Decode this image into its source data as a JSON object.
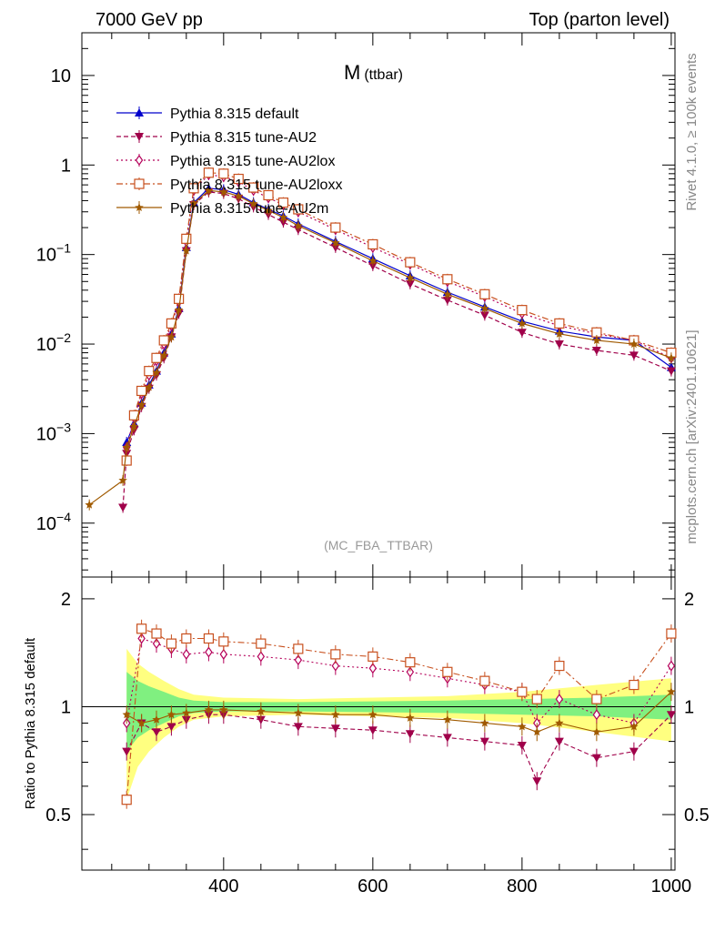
{
  "header": {
    "left": "7000 GeV pp",
    "right": "Top (parton level)"
  },
  "side_labels": {
    "rivet": "Rivet 4.1.0, ≥ 100k events",
    "mcplots": "mcplots.cern.ch [arXiv:2401.10621]"
  },
  "chart_data": {
    "type": "line",
    "title_main": "M",
    "title_sub": "(ttbar)",
    "analysis_id": "(MC_FBA_TTBAR)",
    "xlabel": "",
    "ylabel": "",
    "xlim": [
      210,
      1005
    ],
    "ylim": [
      2.5e-05,
      30
    ],
    "ylog": true,
    "x_ticks": [
      "400",
      "600",
      "800",
      "1000"
    ],
    "x_tick_values": [
      400,
      600,
      800,
      1000
    ],
    "y_ticks": [
      {
        "mant": "10",
        "exp": "",
        "value": 10
      },
      {
        "mant": "1",
        "exp": "",
        "value": 1
      },
      {
        "mant": "10",
        "exp": "−1",
        "value": 0.1
      },
      {
        "mant": "10",
        "exp": "−2",
        "value": 0.01
      },
      {
        "mant": "10",
        "exp": "−3",
        "value": 0.001
      },
      {
        "mant": "10",
        "exp": "−4",
        "value": 0.0001
      }
    ],
    "legend": [
      {
        "name": "Pythia 8.315 default",
        "color": "#0000cc",
        "marker": "triangle-up",
        "dash": ""
      },
      {
        "name": "Pythia 8.315 tune-AU2",
        "color": "#a0004a",
        "marker": "triangle-down",
        "dash": "5,3"
      },
      {
        "name": "Pythia 8.315 tune-AU2lox",
        "color": "#b5005a",
        "marker": "diamond-open",
        "dash": "2,3"
      },
      {
        "name": "Pythia 8.315 tune-AU2loxx",
        "color": "#c8501e",
        "marker": "square-open",
        "dash": "7,3,2,3"
      },
      {
        "name": "Pythia 8.315 tune-AU2m",
        "color": "#a05a00",
        "marker": "star",
        "dash": ""
      }
    ],
    "series": [
      {
        "name": "Pythia 8.315 default",
        "x": [
          270,
          280,
          290,
          300,
          310,
          320,
          330,
          340,
          350,
          360,
          380,
          400,
          420,
          440,
          460,
          480,
          500,
          550,
          600,
          650,
          700,
          750,
          800,
          850,
          900,
          950,
          1000
        ],
        "y": [
          0.0008,
          0.0013,
          0.0022,
          0.0035,
          0.005,
          0.008,
          0.013,
          0.025,
          0.12,
          0.38,
          0.55,
          0.53,
          0.47,
          0.38,
          0.32,
          0.27,
          0.22,
          0.14,
          0.09,
          0.058,
          0.038,
          0.026,
          0.018,
          0.014,
          0.012,
          0.011,
          0.0055
        ]
      },
      {
        "name": "Pythia 8.315 tune-AU2",
        "x": [
          265,
          270,
          280,
          290,
          300,
          310,
          320,
          330,
          340,
          350,
          360,
          380,
          400,
          420,
          440,
          460,
          480,
          500,
          550,
          600,
          650,
          700,
          750,
          800,
          850,
          900,
          950,
          1000
        ],
        "y": [
          0.00015,
          0.0006,
          0.0011,
          0.002,
          0.0032,
          0.0045,
          0.007,
          0.012,
          0.022,
          0.11,
          0.36,
          0.5,
          0.48,
          0.42,
          0.34,
          0.28,
          0.23,
          0.19,
          0.12,
          0.075,
          0.047,
          0.031,
          0.021,
          0.0135,
          0.01,
          0.0085,
          0.0075,
          0.005
        ]
      },
      {
        "name": "Pythia 8.315 tune-AU2lox",
        "x": [
          270,
          280,
          290,
          300,
          310,
          320,
          330,
          340,
          350,
          360,
          380,
          400,
          420,
          440,
          460,
          480,
          500,
          550,
          600,
          650,
          700,
          750,
          800,
          850,
          900,
          950,
          1000
        ],
        "y": [
          0.0007,
          0.0015,
          0.0028,
          0.0045,
          0.0065,
          0.01,
          0.016,
          0.03,
          0.14,
          0.52,
          0.78,
          0.74,
          0.65,
          0.52,
          0.43,
          0.36,
          0.3,
          0.19,
          0.12,
          0.078,
          0.05,
          0.034,
          0.022,
          0.016,
          0.013,
          0.011,
          0.007
        ]
      },
      {
        "name": "Pythia 8.315 tune-AU2loxx",
        "x": [
          270,
          280,
          290,
          300,
          310,
          320,
          330,
          340,
          350,
          360,
          380,
          400,
          420,
          440,
          460,
          480,
          500,
          550,
          600,
          650,
          700,
          750,
          800,
          850,
          900,
          950,
          1000
        ],
        "y": [
          0.0005,
          0.0016,
          0.003,
          0.005,
          0.007,
          0.011,
          0.017,
          0.032,
          0.15,
          0.55,
          0.82,
          0.8,
          0.7,
          0.56,
          0.46,
          0.38,
          0.32,
          0.2,
          0.13,
          0.082,
          0.053,
          0.036,
          0.024,
          0.017,
          0.0135,
          0.011,
          0.008
        ]
      },
      {
        "name": "Pythia 8.315 tune-AU2m",
        "x": [
          220,
          265,
          270,
          280,
          290,
          300,
          310,
          320,
          330,
          340,
          350,
          360,
          380,
          400,
          420,
          440,
          460,
          480,
          500,
          550,
          600,
          650,
          700,
          750,
          800,
          850,
          900,
          950,
          1000
        ],
        "y": [
          0.00016,
          0.0003,
          0.0007,
          0.0012,
          0.0021,
          0.0033,
          0.0048,
          0.0075,
          0.012,
          0.024,
          0.11,
          0.37,
          0.52,
          0.5,
          0.45,
          0.37,
          0.31,
          0.26,
          0.21,
          0.135,
          0.085,
          0.055,
          0.036,
          0.025,
          0.017,
          0.013,
          0.011,
          0.01,
          0.007
        ]
      }
    ],
    "ratio": {
      "ylabel": "Ratio to Pythia 8.315 default",
      "ylim": [
        0.35,
        2.3
      ],
      "y_ticks": [
        "0.5",
        "1",
        "2"
      ],
      "y_tick_values": [
        0.5,
        1,
        2
      ],
      "band_x": [
        270,
        285,
        300,
        320,
        340,
        360,
        400,
        500,
        600,
        700,
        800,
        900,
        1000
      ],
      "band_yellow": [
        0.45,
        0.32,
        0.25,
        0.18,
        0.12,
        0.08,
        0.06,
        0.05,
        0.06,
        0.07,
        0.1,
        0.15,
        0.2
      ],
      "band_green": [
        0.25,
        0.18,
        0.14,
        0.1,
        0.06,
        0.04,
        0.03,
        0.03,
        0.035,
        0.04,
        0.05,
        0.06,
        0.08
      ],
      "series": [
        {
          "name": "Pythia 8.315 tune-AU2",
          "x": [
            270,
            290,
            310,
            330,
            350,
            380,
            400,
            450,
            500,
            550,
            600,
            650,
            700,
            750,
            800,
            820,
            850,
            900,
            950,
            1000
          ],
          "y": [
            0.75,
            0.9,
            0.85,
            0.88,
            0.92,
            0.95,
            0.95,
            0.92,
            0.88,
            0.87,
            0.86,
            0.84,
            0.82,
            0.8,
            0.78,
            0.62,
            0.8,
            0.72,
            0.75,
            0.95
          ]
        },
        {
          "name": "Pythia 8.315 tune-AU2lox",
          "x": [
            270,
            290,
            310,
            330,
            350,
            380,
            400,
            450,
            500,
            550,
            600,
            650,
            700,
            750,
            800,
            820,
            850,
            900,
            950,
            1000
          ],
          "y": [
            0.9,
            1.55,
            1.5,
            1.45,
            1.4,
            1.42,
            1.4,
            1.38,
            1.35,
            1.3,
            1.28,
            1.25,
            1.2,
            1.15,
            1.1,
            0.9,
            1.05,
            0.95,
            0.9,
            1.3
          ]
        },
        {
          "name": "Pythia 8.315 tune-AU2loxx",
          "x": [
            270,
            290,
            310,
            330,
            350,
            380,
            400,
            450,
            500,
            550,
            600,
            650,
            700,
            750,
            800,
            820,
            850,
            900,
            950,
            1000
          ],
          "y": [
            0.55,
            1.65,
            1.6,
            1.5,
            1.55,
            1.55,
            1.52,
            1.5,
            1.45,
            1.4,
            1.38,
            1.33,
            1.25,
            1.18,
            1.1,
            1.05,
            1.3,
            1.05,
            1.15,
            1.6
          ]
        },
        {
          "name": "Pythia 8.315 tune-AU2m",
          "x": [
            270,
            290,
            310,
            330,
            350,
            380,
            400,
            450,
            500,
            550,
            600,
            650,
            700,
            750,
            800,
            820,
            850,
            900,
            950,
            1000
          ],
          "y": [
            0.95,
            0.9,
            0.92,
            0.95,
            0.96,
            0.98,
            0.98,
            0.97,
            0.96,
            0.95,
            0.95,
            0.93,
            0.92,
            0.9,
            0.88,
            0.85,
            0.9,
            0.85,
            0.88,
            1.1
          ]
        }
      ]
    }
  }
}
